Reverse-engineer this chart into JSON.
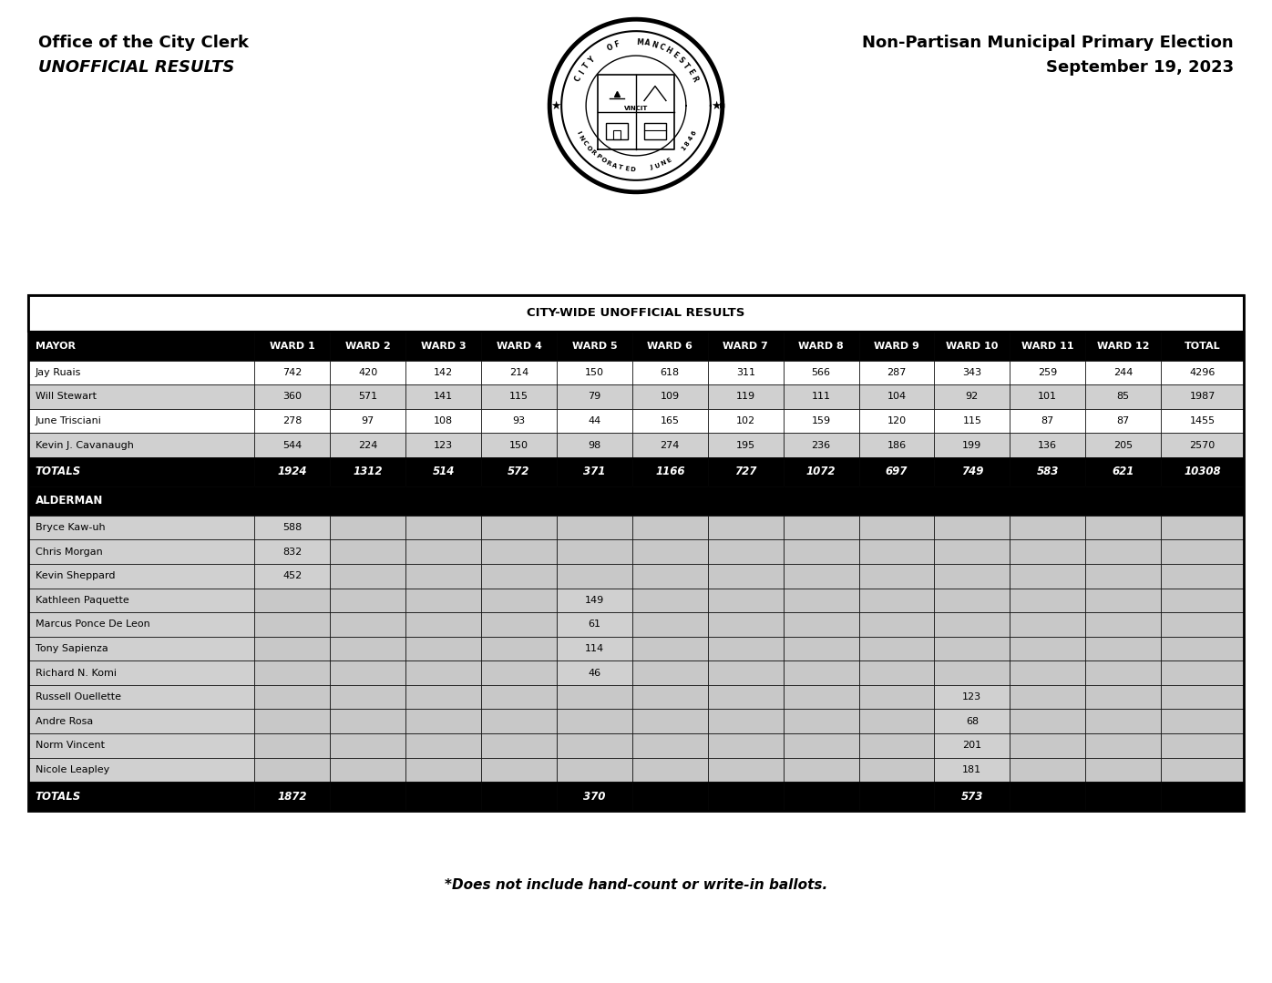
{
  "header_left_line1": "Office of the City Clerk",
  "header_left_line2": "UNOFFICIAL RESULTS",
  "header_right_line1": "Non-Partisan Municipal Primary Election",
  "header_right_line2": "September 19, 2023",
  "table_title": "CITY-WIDE UNOFFICIAL RESULTS",
  "col_headers": [
    "MAYOR",
    "WARD 1",
    "WARD 2",
    "WARD 3",
    "WARD 4",
    "WARD 5",
    "WARD 6",
    "WARD 7",
    "WARD 8",
    "WARD 9",
    "WARD 10",
    "WARD 11",
    "WARD 12",
    "TOTAL"
  ],
  "mayor_rows": [
    [
      "Jay Ruais",
      "742",
      "420",
      "142",
      "214",
      "150",
      "618",
      "311",
      "566",
      "287",
      "343",
      "259",
      "244",
      "4296"
    ],
    [
      "Will Stewart",
      "360",
      "571",
      "141",
      "115",
      "79",
      "109",
      "119",
      "111",
      "104",
      "92",
      "101",
      "85",
      "1987"
    ],
    [
      "June Trisciani",
      "278",
      "97",
      "108",
      "93",
      "44",
      "165",
      "102",
      "159",
      "120",
      "115",
      "87",
      "87",
      "1455"
    ],
    [
      "Kevin J. Cavanaugh",
      "544",
      "224",
      "123",
      "150",
      "98",
      "274",
      "195",
      "236",
      "186",
      "199",
      "136",
      "205",
      "2570"
    ]
  ],
  "mayor_totals": [
    "TOTALS",
    "1924",
    "1312",
    "514",
    "572",
    "371",
    "1166",
    "727",
    "1072",
    "697",
    "749",
    "583",
    "621",
    "10308"
  ],
  "alderman_rows": [
    [
      "Bryce Kaw-uh",
      "588",
      "",
      "",
      "",
      "",
      "",
      "",
      "",
      "",
      "",
      "",
      ""
    ],
    [
      "Chris Morgan",
      "832",
      "",
      "",
      "",
      "",
      "",
      "",
      "",
      "",
      "",
      "",
      ""
    ],
    [
      "Kevin Sheppard",
      "452",
      "",
      "",
      "",
      "",
      "",
      "",
      "",
      "",
      "",
      "",
      ""
    ],
    [
      "Kathleen Paquette",
      "",
      "",
      "",
      "",
      "149",
      "",
      "",
      "",
      "",
      "",
      "",
      ""
    ],
    [
      "Marcus Ponce De Leon",
      "",
      "",
      "",
      "",
      "61",
      "",
      "",
      "",
      "",
      "",
      "",
      ""
    ],
    [
      "Tony Sapienza",
      "",
      "",
      "",
      "",
      "114",
      "",
      "",
      "",
      "",
      "",
      "",
      ""
    ],
    [
      "Richard N. Komi",
      "",
      "",
      "",
      "",
      "46",
      "",
      "",
      "",
      "",
      "",
      "",
      ""
    ],
    [
      "Russell Ouellette",
      "",
      "",
      "",
      "",
      "",
      "",
      "",
      "",
      "",
      "123",
      "",
      ""
    ],
    [
      "Andre Rosa",
      "",
      "",
      "",
      "",
      "",
      "",
      "",
      "",
      "",
      "68",
      "",
      ""
    ],
    [
      "Norm Vincent",
      "",
      "",
      "",
      "",
      "",
      "",
      "",
      "",
      "",
      "201",
      "",
      ""
    ],
    [
      "Nicole Leapley",
      "",
      "",
      "",
      "",
      "",
      "",
      "",
      "",
      "",
      "181",
      "",
      ""
    ]
  ],
  "alderman_totals": [
    "TOTALS",
    "1872",
    "",
    "",
    "",
    "370",
    "",
    "",
    "",
    "",
    "573",
    "",
    ""
  ],
  "footnote": "*Does not include hand-count or write-in ballots.",
  "bg_color": "#ffffff",
  "black": "#000000",
  "white": "#ffffff",
  "gray_cell": "#c8c8c8",
  "gray_row": "#d0d0d0",
  "title_fontsize": 9.5,
  "header_fontsize": 8.0,
  "data_fontsize": 8.0,
  "totals_fontsize": 8.5
}
